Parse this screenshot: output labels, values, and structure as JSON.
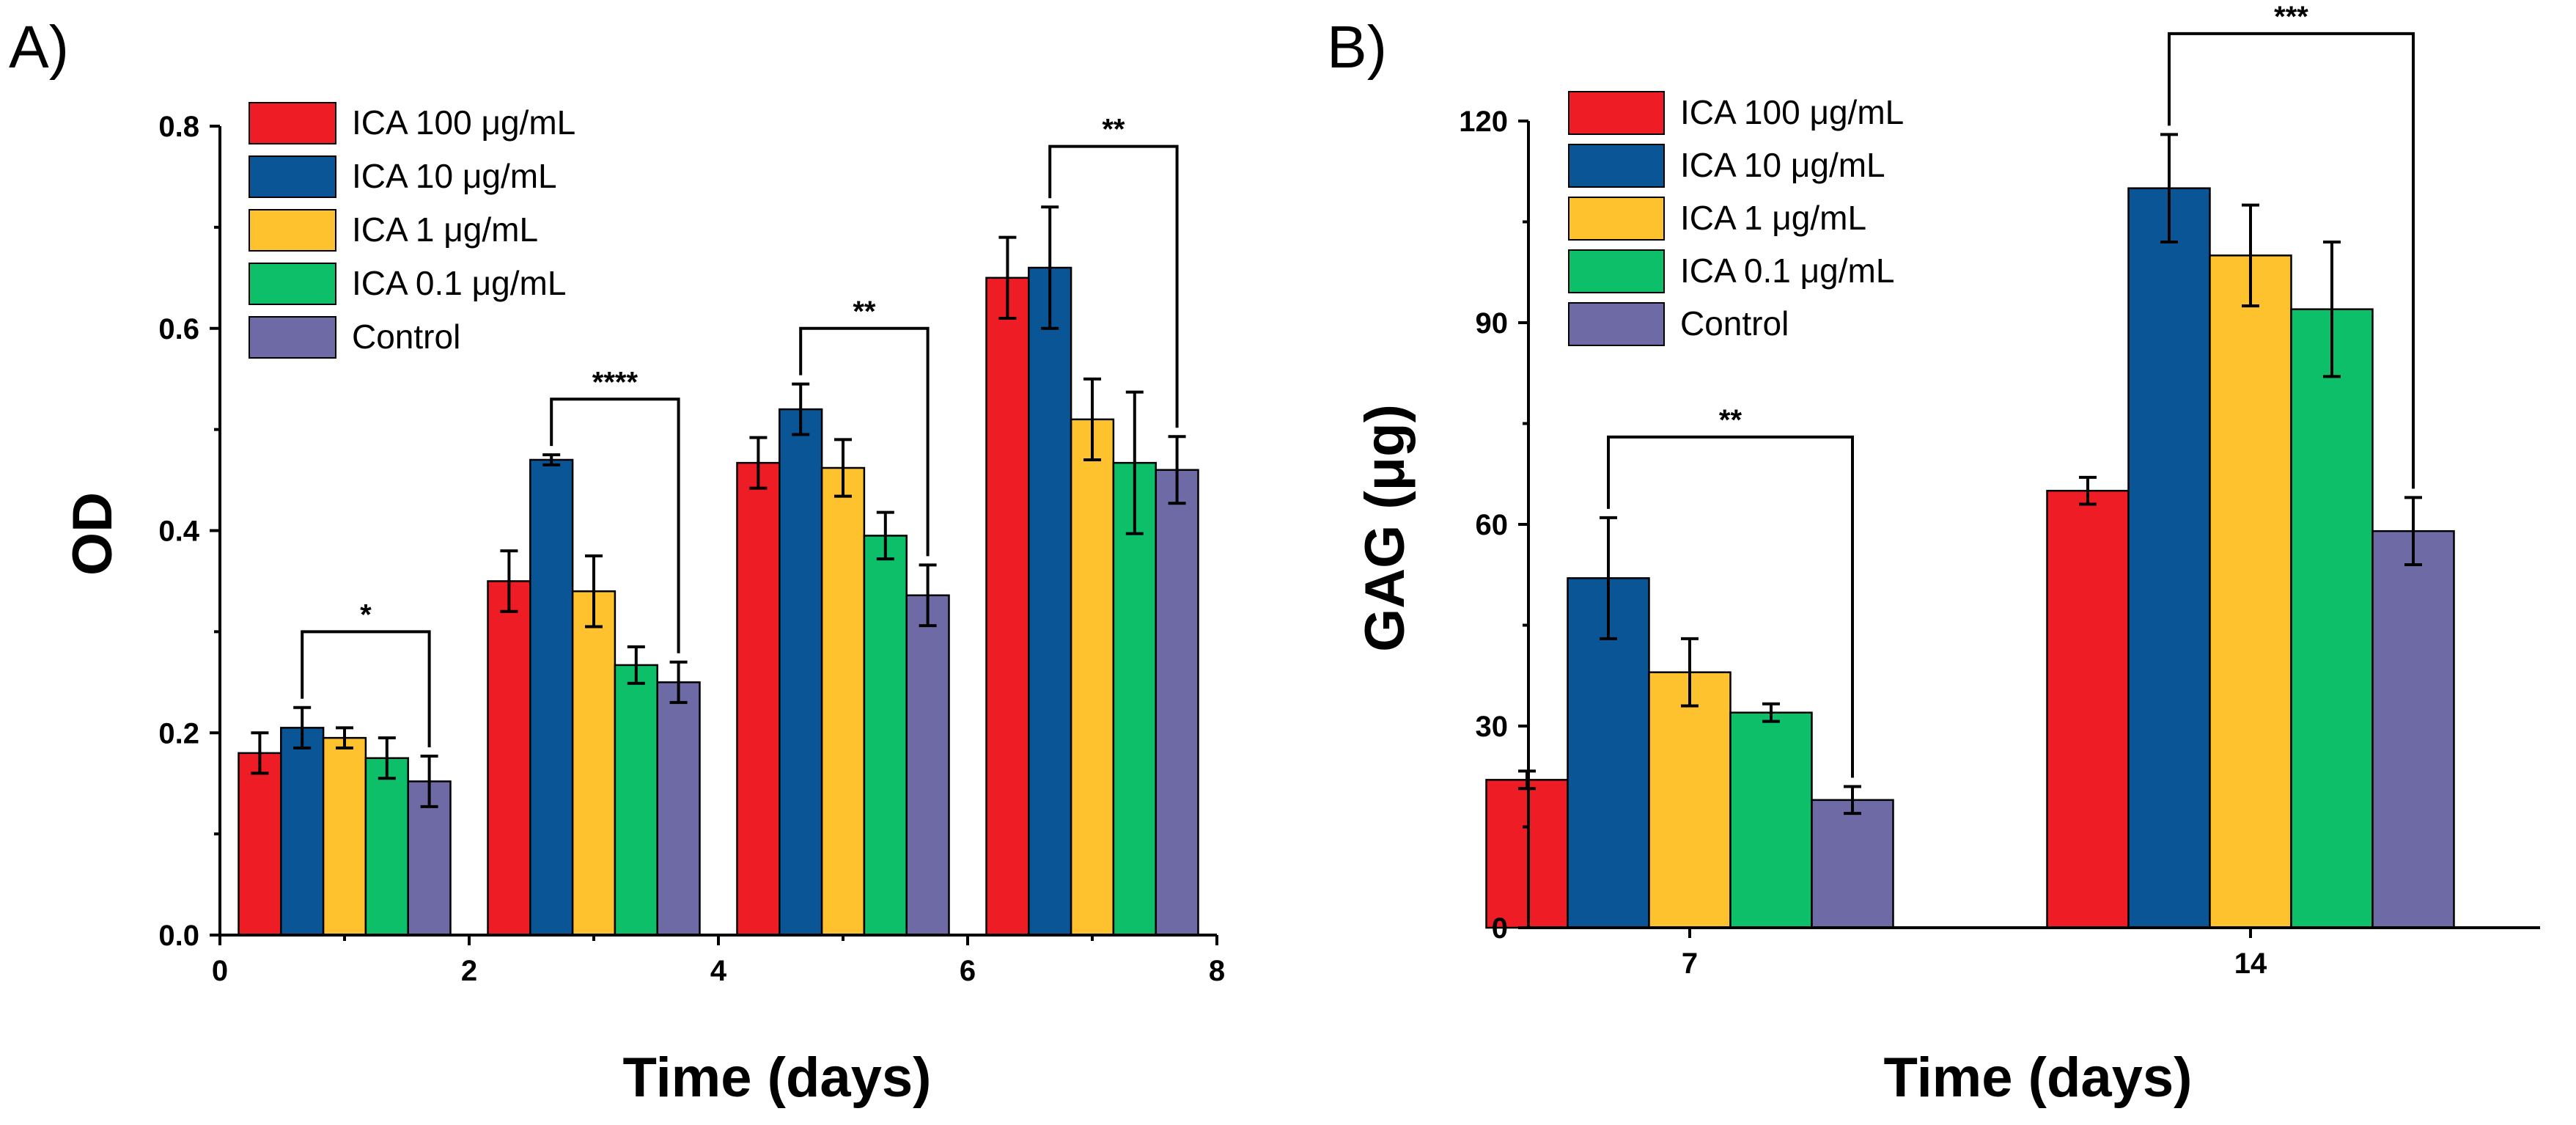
{
  "chart_data": [
    {
      "panel": "A)",
      "type": "bar",
      "xlabel": "Time (days)",
      "ylabel": "OD",
      "xlim": [
        0,
        8
      ],
      "ylim": [
        0,
        0.8
      ],
      "xticks": [
        0,
        2,
        4,
        6,
        8
      ],
      "xtick_labels": [
        "0",
        "2",
        "4",
        "6",
        "8"
      ],
      "yticks": [
        0,
        0.2,
        0.4,
        0.6,
        0.8
      ],
      "ytick_labels": [
        "0.0",
        "0.2",
        "0.4",
        "0.6",
        "0.8"
      ],
      "group_centers": [
        1,
        3,
        5,
        7
      ],
      "legend_position": "top-left",
      "series": [
        {
          "name": "ICA 100 μg/mL",
          "color": "#ee1c25",
          "values": [
            0.18,
            0.35,
            0.467,
            0.65
          ],
          "errors": [
            0.02,
            0.03,
            0.025,
            0.04
          ]
        },
        {
          "name": "ICA 10 μg/mL",
          "color": "#0a5596",
          "values": [
            0.205,
            0.47,
            0.52,
            0.66
          ],
          "errors": [
            0.02,
            0.005,
            0.025,
            0.06
          ]
        },
        {
          "name": "ICA 1 μg/mL",
          "color": "#fec22e",
          "values": [
            0.195,
            0.34,
            0.462,
            0.51
          ],
          "errors": [
            0.01,
            0.035,
            0.028,
            0.04
          ]
        },
        {
          "name": "ICA 0.1 μg/mL",
          "color": "#0dbf68",
          "values": [
            0.175,
            0.267,
            0.395,
            0.467
          ],
          "errors": [
            0.02,
            0.018,
            0.023,
            0.07
          ]
        },
        {
          "name": "Control",
          "color": "#6e6aa5",
          "values": [
            0.152,
            0.25,
            0.336,
            0.46
          ],
          "errors": [
            0.025,
            0.02,
            0.03,
            0.033
          ]
        }
      ],
      "significance": [
        {
          "group": 0,
          "from_series": 1,
          "to_series": 4,
          "label": "*",
          "level": 0.3
        },
        {
          "group": 1,
          "from_series": 1,
          "to_series": 4,
          "label": "****",
          "level": 0.53
        },
        {
          "group": 2,
          "from_series": 1,
          "to_series": 4,
          "label": "**",
          "level": 0.6
        },
        {
          "group": 3,
          "from_series": 1,
          "to_series": 4,
          "label": "**",
          "level": 0.78
        }
      ]
    },
    {
      "panel": "B)",
      "type": "bar",
      "xlabel": "Time (days)",
      "ylabel": "GAG (μg)",
      "categories": [
        "7",
        "14"
      ],
      "ylim": [
        0,
        120
      ],
      "yticks": [
        0,
        30,
        60,
        90,
        120
      ],
      "ytick_labels": [
        "0",
        "30",
        "60",
        "90",
        "120"
      ],
      "legend_position": "top-left",
      "series": [
        {
          "name": "ICA 100 μg/mL",
          "color": "#ee1c25",
          "values": [
            22,
            65
          ],
          "errors": [
            1.3,
            2
          ]
        },
        {
          "name": "ICA 10 μg/mL",
          "color": "#0a5596",
          "values": [
            52,
            110
          ],
          "errors": [
            9,
            8
          ]
        },
        {
          "name": "ICA 1 μg/mL",
          "color": "#fec22e",
          "values": [
            38,
            100
          ],
          "errors": [
            5,
            7.5
          ]
        },
        {
          "name": "ICA 0.1 μg/mL",
          "color": "#0dbf68",
          "values": [
            32,
            92
          ],
          "errors": [
            1.3,
            10
          ]
        },
        {
          "name": "Control",
          "color": "#6e6aa5",
          "values": [
            19,
            59
          ],
          "errors": [
            2,
            5
          ]
        }
      ],
      "significance": [
        {
          "group": 0,
          "from_series": 1,
          "to_series": 4,
          "label": "**",
          "level": 73
        },
        {
          "group": 1,
          "from_series": 1,
          "to_series": 4,
          "label": "***",
          "level": 133
        }
      ]
    }
  ]
}
